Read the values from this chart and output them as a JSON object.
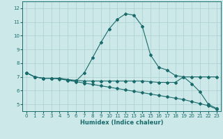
{
  "xlabel": "Humidex (Indice chaleur)",
  "background_color": "#cce8e8",
  "grid_color": "#aacfcf",
  "line_color": "#1a6b6b",
  "xlim": [
    -0.5,
    23.5
  ],
  "ylim": [
    4.5,
    12.5
  ],
  "xticks": [
    0,
    1,
    2,
    3,
    4,
    5,
    6,
    7,
    8,
    9,
    10,
    11,
    12,
    13,
    14,
    15,
    16,
    17,
    18,
    19,
    20,
    21,
    22,
    23
  ],
  "yticks": [
    5,
    6,
    7,
    8,
    9,
    10,
    11,
    12
  ],
  "line1_x": [
    0,
    1,
    2,
    3,
    4,
    5,
    6,
    7,
    8,
    9,
    10,
    11,
    12,
    13,
    14,
    15,
    16,
    17,
    18,
    19,
    20,
    21,
    22,
    23
  ],
  "line1_y": [
    7.3,
    7.0,
    6.9,
    6.9,
    6.9,
    6.8,
    6.7,
    7.3,
    8.4,
    9.5,
    10.5,
    11.2,
    11.6,
    11.5,
    10.7,
    8.6,
    7.7,
    7.5,
    7.1,
    7.0,
    6.5,
    5.9,
    5.0,
    4.7
  ],
  "line2_x": [
    0,
    1,
    2,
    3,
    4,
    5,
    6,
    7,
    8,
    9,
    10,
    11,
    12,
    13,
    14,
    15,
    16,
    17,
    18,
    19,
    20,
    21,
    22,
    23
  ],
  "line2_y": [
    7.3,
    7.0,
    6.9,
    6.9,
    6.9,
    6.8,
    6.75,
    6.7,
    6.7,
    6.7,
    6.7,
    6.7,
    6.7,
    6.7,
    6.7,
    6.65,
    6.6,
    6.6,
    6.6,
    7.0,
    7.0,
    7.0,
    7.0,
    7.0
  ],
  "line3_x": [
    0,
    1,
    2,
    3,
    4,
    5,
    6,
    7,
    8,
    9,
    10,
    11,
    12,
    13,
    14,
    15,
    16,
    17,
    18,
    19,
    20,
    21,
    22,
    23
  ],
  "line3_y": [
    7.3,
    7.0,
    6.9,
    6.9,
    6.85,
    6.75,
    6.65,
    6.55,
    6.45,
    6.35,
    6.25,
    6.15,
    6.05,
    5.95,
    5.85,
    5.75,
    5.65,
    5.55,
    5.45,
    5.35,
    5.2,
    5.05,
    4.9,
    4.65
  ]
}
